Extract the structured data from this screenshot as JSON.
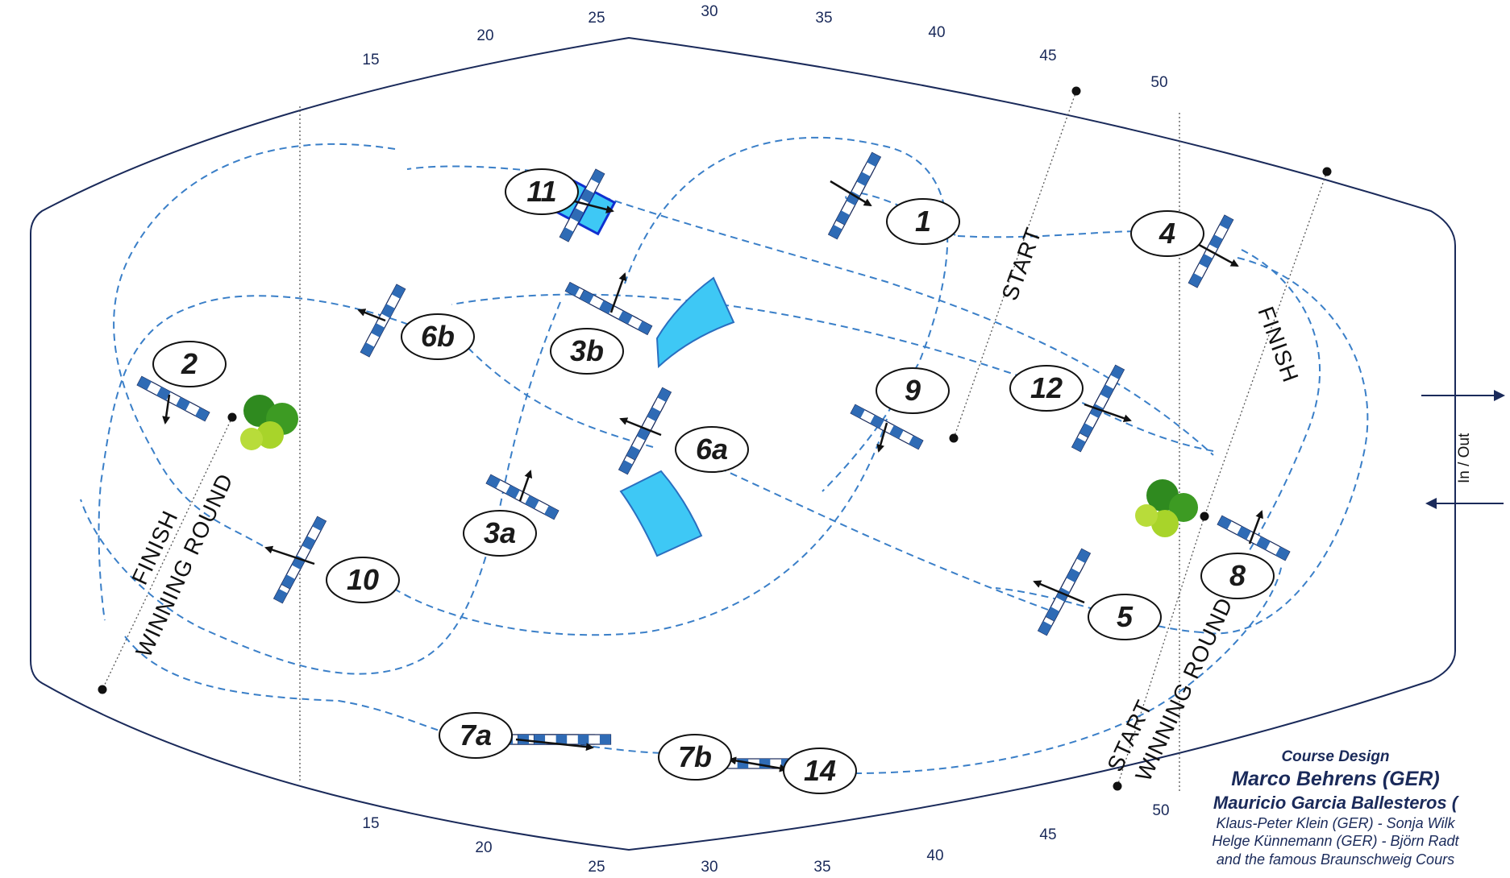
{
  "scale_top": [
    "15",
    "20",
    "25",
    "30",
    "35",
    "40",
    "45",
    "50"
  ],
  "scale_bottom": [
    "15",
    "20",
    "25",
    "30",
    "35",
    "40",
    "45",
    "50"
  ],
  "obstacles": [
    "1",
    "2",
    "3a",
    "3b",
    "4",
    "5",
    "6a",
    "6b",
    "7a",
    "7b",
    "8",
    "9",
    "10",
    "11",
    "12",
    "14"
  ],
  "labels": {
    "start": "START",
    "finish": "FINISH",
    "finish_winning_round": [
      "FINISH",
      "WINNING ROUND"
    ],
    "start_winning_round": [
      "START",
      "WINNING ROUND"
    ],
    "in_out": "In / Out"
  },
  "credits": {
    "heading": "Course Design",
    "designer_1": "Marco Behrens (GER)",
    "designer_2": "Mauricio Garcia Ballesteros (",
    "assistants_1": "Klaus-Peter Klein (GER) - Sonja Wilk",
    "assistants_2": "Helge Künnemann (GER) - Björn Radt",
    "assistants_3": "and the famous Braunschweig Cours"
  },
  "colors": {
    "arena_line": "#1a2a5a",
    "route": "#3a7fc8",
    "rail_blue": "#2f6bb5",
    "water": "#3ec8f5",
    "tree_dark": "#2f8a1f",
    "tree_light": "#a8d42a"
  }
}
